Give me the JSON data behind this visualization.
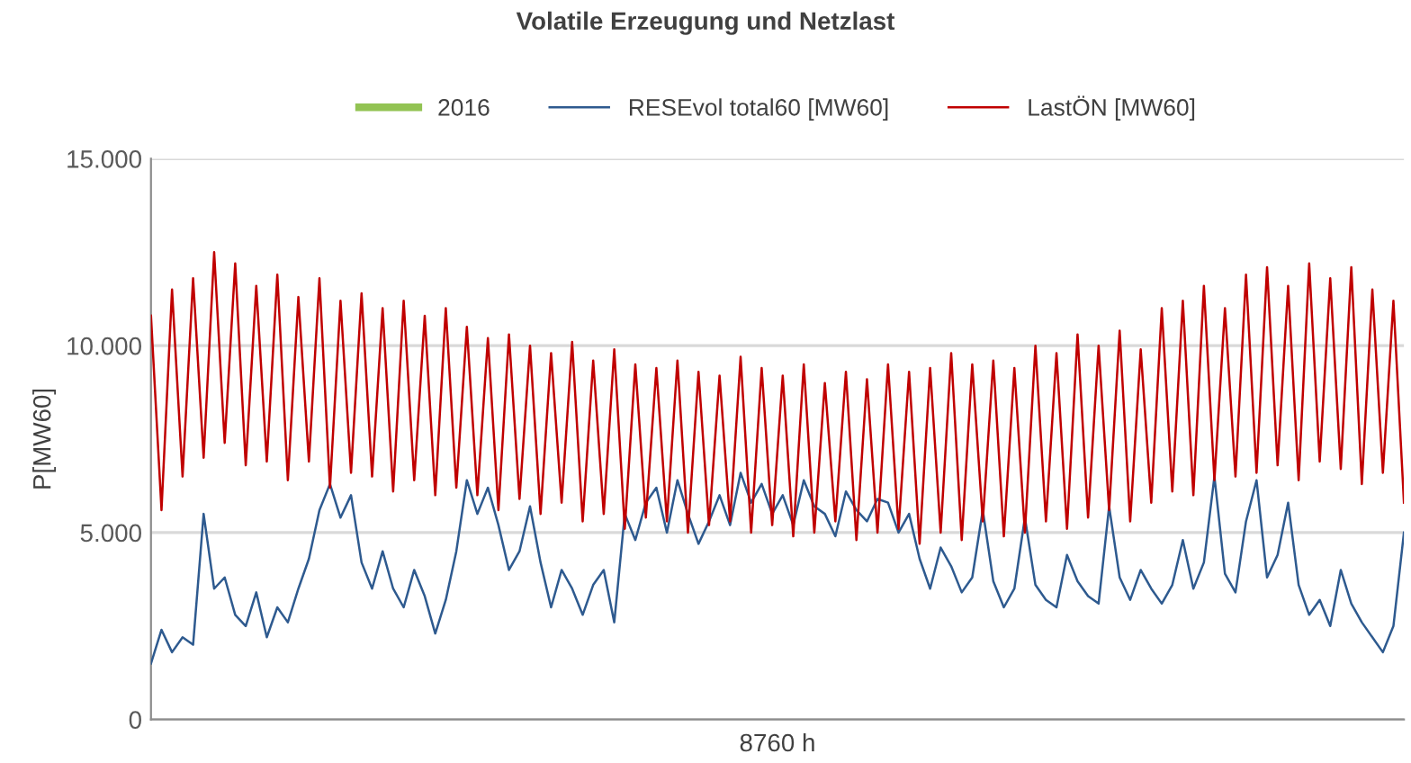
{
  "chart_data": {
    "type": "line",
    "title": "Volatile Erzeugung und Netzlast",
    "xlabel": "8760 h",
    "ylabel": "P[MW60]",
    "categories": [
      null,
      null,
      null,
      null,
      null,
      null,
      null,
      null,
      null,
      null,
      null,
      null,
      null,
      null,
      null,
      null,
      null,
      null,
      null,
      null,
      null,
      null,
      null,
      null,
      null,
      null,
      null,
      null,
      null,
      null,
      null,
      null,
      null,
      null,
      null,
      null,
      null,
      null,
      null,
      null,
      null,
      null,
      null,
      null,
      null,
      null,
      null,
      null,
      null,
      null,
      null,
      null,
      null,
      null,
      null,
      null,
      null,
      null,
      null,
      null,
      null,
      null,
      null,
      null,
      null,
      null,
      null,
      null,
      null,
      null,
      null,
      null,
      null,
      null,
      null,
      null,
      null,
      null,
      null,
      null,
      null,
      null,
      null,
      null,
      null,
      null,
      null,
      null,
      null,
      null,
      null,
      null,
      null,
      null,
      null,
      null,
      null,
      null,
      null,
      null,
      null,
      null,
      null,
      null,
      null,
      null,
      null,
      null,
      null,
      null,
      null,
      null,
      null,
      null,
      null,
      null,
      null,
      null,
      null,
      null
    ],
    "series": [
      {
        "name": "2016",
        "color": "#92c353",
        "values": [
          null,
          null,
          null,
          null,
          null,
          null,
          null,
          null,
          null,
          null,
          null,
          null,
          null,
          null,
          null,
          null,
          null,
          null,
          null,
          null,
          null,
          null,
          null,
          null,
          null,
          null,
          null,
          null,
          null,
          null,
          null,
          null,
          null,
          null,
          null,
          null,
          null,
          null,
          null,
          null,
          null,
          null,
          null,
          null,
          null,
          null,
          null,
          null,
          null,
          null,
          null,
          null,
          null,
          null,
          null,
          null,
          null,
          null,
          null,
          null,
          null,
          null,
          null,
          null,
          null,
          null,
          null,
          null,
          null,
          null,
          null,
          null,
          null,
          null,
          null,
          null,
          null,
          null,
          null,
          null,
          null,
          null,
          null,
          null,
          null,
          null,
          null,
          null,
          null,
          null,
          null,
          null,
          null,
          null,
          null,
          null,
          null,
          null,
          null,
          null,
          null,
          null,
          null,
          null,
          null,
          null,
          null,
          null,
          null,
          null,
          null,
          null,
          null,
          null,
          null,
          null,
          null,
          null,
          null,
          null
        ]
      },
      {
        "name": "RESEvol total60 [MW60]",
        "color": "#2e5a8f",
        "values": [
          1500,
          2400,
          1800,
          2200,
          2000,
          5500,
          3500,
          3800,
          2800,
          2500,
          3400,
          2200,
          3000,
          2600,
          3500,
          4300,
          5600,
          6300,
          5400,
          6000,
          4200,
          3500,
          4500,
          3500,
          3000,
          4000,
          3300,
          2300,
          3200,
          4500,
          6400,
          5500,
          6200,
          5200,
          4000,
          4500,
          5700,
          4200,
          3000,
          4000,
          3500,
          2800,
          3600,
          4000,
          2600,
          5500,
          4800,
          5800,
          6200,
          5000,
          6400,
          5500,
          4700,
          5300,
          6000,
          5200,
          6600,
          5800,
          6300,
          5500,
          6000,
          5200,
          6400,
          5700,
          5500,
          4900,
          6100,
          5600,
          5300,
          5900,
          5800,
          5000,
          5500,
          4300,
          3500,
          4600,
          4100,
          3400,
          3800,
          5600,
          3700,
          3000,
          3500,
          5400,
          3600,
          3200,
          3000,
          4400,
          3700,
          3300,
          3100,
          5700,
          3800,
          3200,
          4000,
          3500,
          3100,
          3600,
          4800,
          3500,
          4200,
          6500,
          3900,
          3400,
          5300,
          6400,
          3800,
          4400,
          5800,
          3600,
          2800,
          3200,
          2500,
          4000,
          3100,
          2600,
          2200,
          1800,
          2500,
          5000
        ]
      },
      {
        "name": "LastÖN [MW60]",
        "color": "#c00000",
        "values": [
          10800,
          5600,
          11500,
          6500,
          11800,
          7000,
          12500,
          7400,
          12200,
          6800,
          11600,
          6900,
          11900,
          6400,
          11300,
          6900,
          11800,
          6200,
          11200,
          6600,
          11400,
          6500,
          11000,
          6100,
          11200,
          6400,
          10800,
          6000,
          11000,
          6200,
          10500,
          6000,
          10200,
          5600,
          10300,
          5900,
          10000,
          5500,
          9800,
          5800,
          10100,
          5300,
          9600,
          5500,
          9900,
          5100,
          9500,
          5400,
          9400,
          5300,
          9600,
          5000,
          9300,
          5200,
          9200,
          5300,
          9700,
          5000,
          9400,
          5200,
          9200,
          4900,
          9500,
          5000,
          9000,
          5300,
          9300,
          4800,
          9100,
          5000,
          9500,
          5100,
          9300,
          4700,
          9400,
          5000,
          9800,
          4800,
          9500,
          5300,
          9600,
          4900,
          9400,
          5000,
          10000,
          5300,
          9800,
          5100,
          10300,
          5400,
          10000,
          5600,
          10400,
          5300,
          9900,
          5800,
          11000,
          6100,
          11200,
          6000,
          11600,
          6400,
          11000,
          6500,
          11900,
          6600,
          12100,
          6800,
          11600,
          6400,
          12200,
          6900,
          11800,
          6700,
          12100,
          6300,
          11500,
          6600,
          11200,
          5800
        ]
      }
    ],
    "ylim": [
      0,
      15000
    ],
    "yticks": [
      {
        "value": 0,
        "label": "0"
      },
      {
        "value": 5000,
        "label": "5.000"
      },
      {
        "value": 10000,
        "label": "10.000"
      },
      {
        "value": 15000,
        "label": "15.000"
      }
    ],
    "grid": "y",
    "legend": "top",
    "marker": "none",
    "line_style": "solid"
  }
}
